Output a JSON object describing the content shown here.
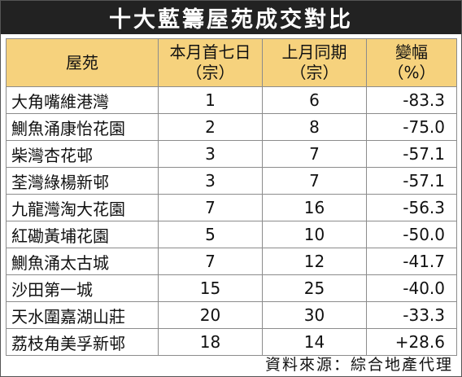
{
  "title": "十大藍籌屋苑成交對比",
  "columns": {
    "estate": "屋苑",
    "this_month_line1": "本月首七日",
    "this_month_line2": "（宗）",
    "last_month_line1": "上月同期",
    "last_month_line2": "（宗）",
    "change_line1": "變幅",
    "change_line2": "（%）"
  },
  "rows": [
    {
      "estate": "大角嘴維港灣",
      "this_month": "1",
      "last_month": "6",
      "change": "-83.3"
    },
    {
      "estate": "鰂魚涌康怡花園",
      "this_month": "2",
      "last_month": "8",
      "change": "-75.0"
    },
    {
      "estate": "柴灣杏花邨",
      "this_month": "3",
      "last_month": "7",
      "change": "-57.1"
    },
    {
      "estate": "荃灣綠楊新邨",
      "this_month": "3",
      "last_month": "7",
      "change": "-57.1"
    },
    {
      "estate": "九龍灣淘大花園",
      "this_month": "7",
      "last_month": "16",
      "change": "-56.3"
    },
    {
      "estate": "紅磡黃埔花園",
      "this_month": "5",
      "last_month": "10",
      "change": "-50.0"
    },
    {
      "estate": "鰂魚涌太古城",
      "this_month": "7",
      "last_month": "12",
      "change": "-41.7"
    },
    {
      "estate": "沙田第一城",
      "this_month": "15",
      "last_month": "25",
      "change": "-40.0"
    },
    {
      "estate": "天水圍嘉湖山莊",
      "this_month": "20",
      "last_month": "30",
      "change": "-33.3"
    },
    {
      "estate": "荔枝角美孚新邨",
      "this_month": "18",
      "last_month": "14",
      "change": "+28.6"
    }
  ],
  "source": "資料來源：綜合地產代理",
  "colors": {
    "title_bg": "#222222",
    "header_bg": "#f6d27d",
    "border": "#8c8c8c"
  }
}
